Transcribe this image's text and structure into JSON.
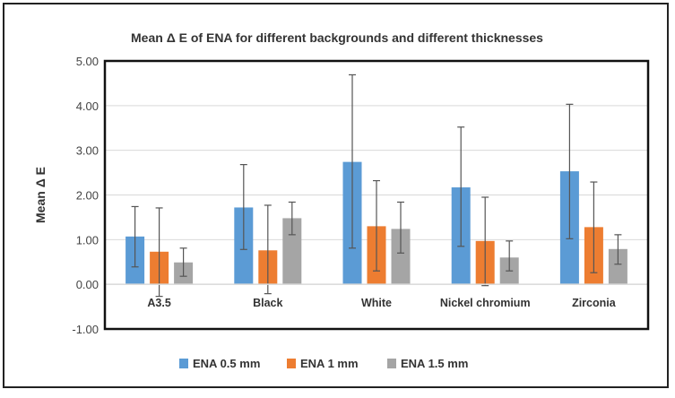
{
  "chart_data": {
    "type": "bar",
    "title": "Mean Δ E of ENA for different backgrounds and different thicknesses",
    "xlabel": "",
    "ylabel": "Mean Δ E",
    "ylim": [
      -1,
      5
    ],
    "yticks": [
      "-1.00",
      "0.00",
      "1.00",
      "2.00",
      "3.00",
      "4.00",
      "5.00"
    ],
    "grid": true,
    "legend": "bottom",
    "categories": [
      "A3.5",
      "Black",
      "White",
      "Nickel chromium",
      "Zirconia"
    ],
    "series": [
      {
        "name": "ENA 0.5 mm",
        "color": "#5b9bd5",
        "values": [
          1.07,
          1.72,
          2.74,
          2.17,
          2.53
        ],
        "error_high": [
          1.74,
          2.68,
          4.69,
          3.52,
          4.03
        ],
        "error_low": [
          0.39,
          0.78,
          0.81,
          0.85,
          1.02
        ]
      },
      {
        "name": "ENA 1 mm",
        "color": "#ed7d31",
        "values": [
          0.73,
          0.76,
          1.3,
          0.97,
          1.28
        ],
        "error_high": [
          1.71,
          1.77,
          2.32,
          1.95,
          2.29
        ],
        "error_low": [
          -0.27,
          -0.21,
          0.3,
          -0.03,
          0.26
        ]
      },
      {
        "name": "ENA 1.5 mm",
        "color": "#a5a5a5",
        "values": [
          0.49,
          1.48,
          1.24,
          0.6,
          0.79
        ],
        "error_high": [
          0.81,
          1.84,
          1.84,
          0.97,
          1.11
        ],
        "error_low": [
          0.18,
          1.11,
          0.7,
          0.3,
          0.45
        ]
      }
    ]
  }
}
